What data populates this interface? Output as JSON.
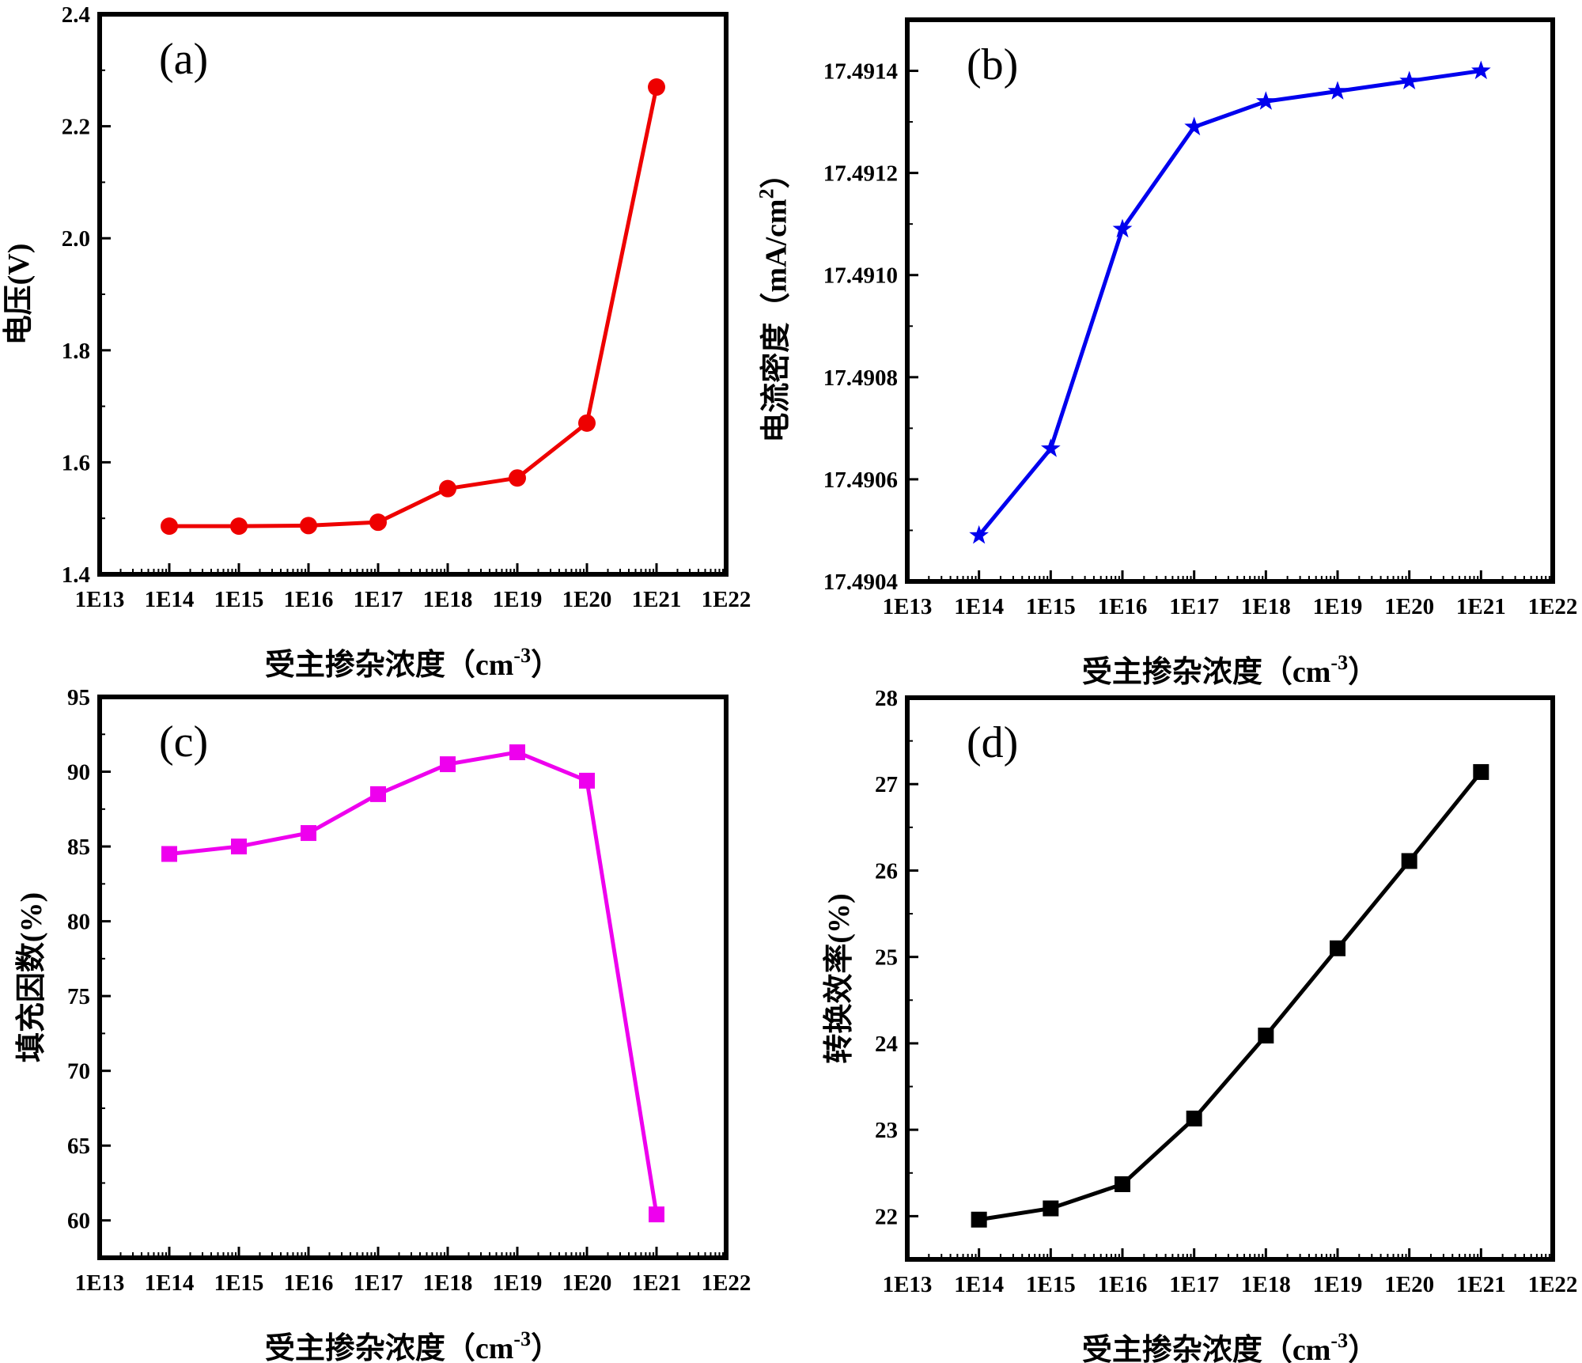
{
  "chart_data": [
    {
      "type": "line",
      "panel": "(a)",
      "title": "",
      "xlabel": "受主掺杂浓度（cm",
      "xlabel_sup": "-3",
      "xlabel_end": "）",
      "ylabel": "电压(V)",
      "ylabel_sup": "",
      "ylabel_end": "",
      "ylim": [
        1.4,
        2.4
      ],
      "yticks": [
        1.4,
        1.6,
        1.8,
        2.0,
        2.2,
        2.4
      ],
      "ytick_labels": [
        "1.4",
        "1.6",
        "1.8",
        "2.0",
        "2.2",
        "2.4"
      ],
      "x_ticks": [
        "1E13",
        "1E14",
        "1E15",
        "1E16",
        "1E17",
        "1E18",
        "1E19",
        "1E20",
        "1E21",
        "1E22"
      ],
      "categories": [
        "1E14",
        "1E15",
        "1E16",
        "1E17",
        "1E18",
        "1E19",
        "1E20",
        "1E21"
      ],
      "series": [
        {
          "name": "电压",
          "values": [
            1.486,
            1.486,
            1.487,
            1.493,
            1.553,
            1.572,
            1.67,
            2.27
          ]
        }
      ],
      "marker": "circle",
      "color": "#ee0000"
    },
    {
      "type": "line",
      "panel": "(b)",
      "title": "",
      "xlabel": "受主掺杂浓度（cm",
      "xlabel_sup": "-3",
      "xlabel_end": "）",
      "ylabel": "电流密度（mA/cm",
      "ylabel_sup": "2",
      "ylabel_end": "）",
      "ylim": [
        17.4904,
        17.4915
      ],
      "yticks": [
        17.4904,
        17.4906,
        17.4908,
        17.491,
        17.4912,
        17.4914
      ],
      "ytick_labels": [
        "17.4904",
        "17.4906",
        "17.4908",
        "17.4910",
        "17.4912",
        "17.4914"
      ],
      "x_ticks": [
        "1E13",
        "1E14",
        "1E15",
        "1E16",
        "1E17",
        "1E18",
        "1E19",
        "1E20",
        "1E21",
        "1E22"
      ],
      "categories": [
        "1E14",
        "1E15",
        "1E16",
        "1E17",
        "1E18",
        "1E19",
        "1E20",
        "1E21"
      ],
      "series": [
        {
          "name": "电流密度",
          "values": [
            17.49049,
            17.49066,
            17.49109,
            17.49129,
            17.49134,
            17.49136,
            17.49138,
            17.4914
          ]
        }
      ],
      "marker": "star",
      "color": "#0000ee"
    },
    {
      "type": "line",
      "panel": "(c)",
      "title": "",
      "xlabel": "受主掺杂浓度（cm",
      "xlabel_sup": "-3",
      "xlabel_end": "）",
      "ylabel": "填充因数(%)",
      "ylabel_sup": "",
      "ylabel_end": "",
      "ylim": [
        57.5,
        95
      ],
      "yticks": [
        60,
        65,
        70,
        75,
        80,
        85,
        90,
        95
      ],
      "ytick_labels": [
        "60",
        "65",
        "70",
        "75",
        "80",
        "85",
        "90",
        "95"
      ],
      "x_ticks": [
        "1E13",
        "1E14",
        "1E15",
        "1E16",
        "1E17",
        "1E18",
        "1E19",
        "1E20",
        "1E21",
        "1E22"
      ],
      "categories": [
        "1E14",
        "1E15",
        "1E16",
        "1E17",
        "1E18",
        "1E19",
        "1E20",
        "1E21"
      ],
      "series": [
        {
          "name": "填充因数",
          "values": [
            84.5,
            85.0,
            85.9,
            88.5,
            90.5,
            91.3,
            89.4,
            60.4
          ]
        }
      ],
      "marker": "square",
      "color": "#ee00ee"
    },
    {
      "type": "line",
      "panel": "(d)",
      "title": "",
      "xlabel": "受主掺杂浓度（cm",
      "xlabel_sup": "-3",
      "xlabel_end": "）",
      "ylabel": "转换效率(%)",
      "ylabel_sup": "",
      "ylabel_end": "",
      "ylim": [
        21.5,
        28
      ],
      "yticks": [
        22,
        23,
        24,
        25,
        26,
        27,
        28
      ],
      "ytick_labels": [
        "22",
        "23",
        "24",
        "25",
        "26",
        "27",
        "28"
      ],
      "x_ticks": [
        "1E13",
        "1E14",
        "1E15",
        "1E16",
        "1E17",
        "1E18",
        "1E19",
        "1E20",
        "1E21",
        "1E22"
      ],
      "categories": [
        "1E14",
        "1E15",
        "1E16",
        "1E17",
        "1E18",
        "1E19",
        "1E20",
        "1E21"
      ],
      "series": [
        {
          "name": "转换效率",
          "values": [
            21.96,
            22.09,
            22.37,
            23.13,
            24.09,
            25.1,
            26.11,
            27.14
          ]
        }
      ],
      "marker": "square",
      "color": "#000000"
    }
  ]
}
